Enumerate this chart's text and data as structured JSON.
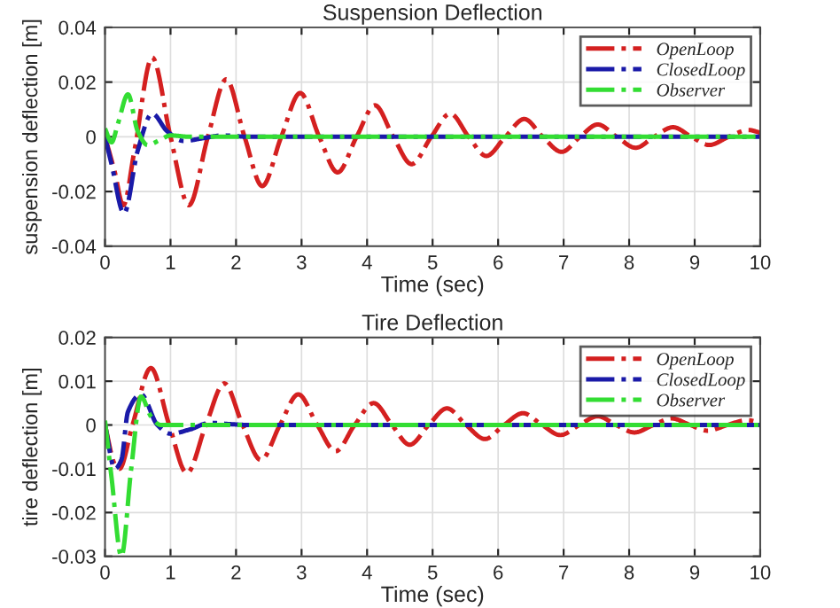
{
  "chart_data": [
    {
      "type": "line",
      "title": "Suspension Deflection",
      "xlabel": "Time (sec)",
      "ylabel": "suspension deflection [m]",
      "xlim": [
        0,
        10
      ],
      "xticks": [
        0,
        1,
        2,
        3,
        4,
        5,
        6,
        7,
        8,
        9,
        10
      ],
      "ylim": [
        -0.04,
        0.04
      ],
      "yticks": [
        -0.04,
        -0.02,
        0,
        0.02,
        0.04
      ],
      "grid": true,
      "legend": "top right",
      "line_style": "dashdot",
      "marker": "none",
      "series": [
        {
          "name": "OpenLoop",
          "color": "#d42020",
          "x": [
            0,
            0.14,
            0.28,
            0.45,
            0.72,
            1.0,
            1.28,
            1.57,
            1.85,
            2.13,
            2.4,
            2.69,
            2.98,
            3.27,
            3.55,
            3.84,
            4.12,
            4.4,
            4.68,
            4.98,
            5.27,
            5.55,
            5.82,
            6.11,
            6.4,
            6.68,
            6.97,
            7.25,
            7.52,
            7.81,
            8.1,
            8.38,
            8.67,
            8.95,
            9.22,
            9.52,
            9.82,
            10
          ],
          "values": [
            0,
            -0.012,
            -0.025,
            -0.005,
            0.029,
            0,
            -0.025,
            0,
            0.021,
            0,
            -0.018,
            0,
            0.016,
            0,
            -0.013,
            0,
            0.0115,
            0,
            -0.01,
            0,
            0.0085,
            0,
            -0.007,
            0,
            0.0065,
            0,
            -0.0055,
            0,
            0.0045,
            0,
            -0.004,
            0,
            0.0035,
            0,
            -0.003,
            0,
            0.0025,
            0.0015
          ]
        },
        {
          "name": "ClosedLoop",
          "color": "#1a1aa8",
          "x": [
            0,
            0.1,
            0.29,
            0.5,
            0.72,
            0.95,
            1.2,
            1.5,
            1.8,
            2.2,
            10
          ],
          "values": [
            0,
            -0.01,
            -0.028,
            -0.005,
            0.0085,
            0.002,
            -0.0015,
            -0.0005,
            0.0005,
            0,
            0
          ]
        },
        {
          "name": "Observer",
          "color": "#33dd33",
          "x": [
            0,
            0.1,
            0.2,
            0.35,
            0.5,
            0.65,
            0.85,
            1.0,
            1.3,
            10
          ],
          "values": [
            0.003,
            -0.002,
            0.005,
            0.0155,
            0.002,
            -0.003,
            -0.001,
            0.0005,
            0,
            0
          ]
        }
      ]
    },
    {
      "type": "line",
      "title": "Tire Deflection",
      "xlabel": "Time (sec)",
      "ylabel": "tire deflection [m]",
      "xlim": [
        0,
        10
      ],
      "xticks": [
        0,
        1,
        2,
        3,
        4,
        5,
        6,
        7,
        8,
        9,
        10
      ],
      "ylim": [
        -0.03,
        0.02
      ],
      "yticks": [
        -0.03,
        -0.02,
        -0.01,
        0,
        0.01,
        0.02
      ],
      "grid": true,
      "legend": "top right",
      "line_style": "dashdot",
      "marker": "none",
      "series": [
        {
          "name": "OpenLoop",
          "color": "#d42020",
          "x": [
            0,
            0.15,
            0.22,
            0.42,
            0.7,
            0.98,
            1.25,
            1.54,
            1.82,
            2.1,
            2.38,
            2.67,
            2.95,
            3.24,
            3.52,
            3.81,
            4.1,
            4.38,
            4.65,
            4.94,
            5.22,
            5.51,
            5.8,
            6.09,
            6.38,
            6.67,
            6.95,
            7.24,
            7.52,
            7.8,
            8.08,
            8.37,
            8.65,
            8.93,
            9.2,
            9.5,
            9.8,
            10
          ],
          "values": [
            0,
            -0.009,
            -0.01,
            0,
            0.013,
            0,
            -0.011,
            0,
            0.0095,
            0,
            -0.008,
            0,
            0.007,
            0,
            -0.006,
            0,
            0.005,
            0,
            -0.0045,
            0,
            0.0038,
            0,
            -0.0032,
            0,
            0.0027,
            0,
            -0.0023,
            0,
            0.002,
            0,
            -0.0017,
            0,
            0.0015,
            0,
            -0.0013,
            0,
            0.0011,
            0.0005
          ]
        },
        {
          "name": "ClosedLoop",
          "color": "#1a1aa8",
          "x": [
            0,
            0.15,
            0.25,
            0.35,
            0.55,
            0.8,
            1.0,
            1.3,
            1.6,
            1.9,
            2.2,
            10
          ],
          "values": [
            0,
            -0.01,
            -0.008,
            0.003,
            0.007,
            0,
            -0.002,
            -0.001,
            0.0005,
            0.0002,
            0,
            0
          ]
        },
        {
          "name": "Observer",
          "color": "#33dd33",
          "x": [
            0,
            0.1,
            0.25,
            0.4,
            0.55,
            0.7,
            0.85,
            10
          ],
          "values": [
            0.001,
            -0.012,
            -0.03,
            -0.01,
            0.0065,
            0.002,
            0,
            0
          ]
        }
      ]
    }
  ]
}
